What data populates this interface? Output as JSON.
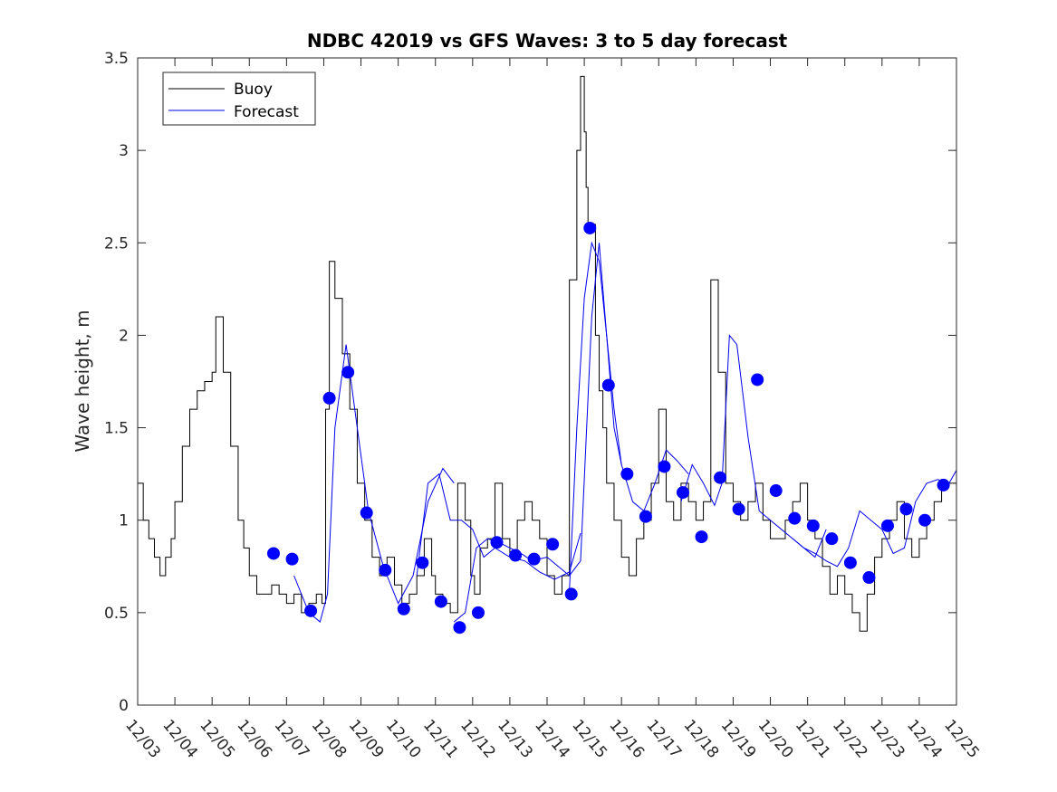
{
  "chart_data": {
    "type": "line",
    "title": "NDBC 42019 vs GFS Waves: 3 to 5 day forecast",
    "xlabel": "",
    "ylabel": "Wave height, m",
    "xlim": [
      0,
      22
    ],
    "ylim": [
      0,
      3.5
    ],
    "x_ticks": [
      0,
      1,
      2,
      3,
      4,
      5,
      6,
      7,
      8,
      9,
      10,
      11,
      12,
      13,
      14,
      15,
      16,
      17,
      18,
      19,
      20,
      21,
      22
    ],
    "x_tick_labels": [
      "12/03",
      "12/04",
      "12/05",
      "12/06",
      "12/07",
      "12/08",
      "12/09",
      "12/10",
      "12/11",
      "12/12",
      "12/13",
      "12/14",
      "12/15",
      "12/16",
      "12/17",
      "12/18",
      "12/19",
      "12/20",
      "12/21",
      "12/22",
      "12/23",
      "12/24",
      "12/25"
    ],
    "y_ticks": [
      0,
      0.5,
      1,
      1.5,
      2,
      2.5,
      3,
      3.5
    ],
    "y_tick_labels": [
      "0",
      "0.5",
      "1",
      "1.5",
      "2",
      "2.5",
      "3",
      "3.5"
    ],
    "legend": {
      "position": "top-left",
      "entries": [
        {
          "label": "Buoy",
          "color": "#000000"
        },
        {
          "label": "Forecast",
          "color": "#0000ee"
        }
      ]
    },
    "colors": {
      "buoy": "#000000",
      "forecast": "#0000ee",
      "marker": "#0000ff"
    },
    "series": [
      {
        "name": "Buoy",
        "x": [
          0,
          0.15,
          0.3,
          0.45,
          0.6,
          0.75,
          0.9,
          1.0,
          1.2,
          1.4,
          1.6,
          1.8,
          2.0,
          2.1,
          2.3,
          2.5,
          2.7,
          2.85,
          3.0,
          3.2,
          3.4,
          3.6,
          3.8,
          4.0,
          4.2,
          4.4,
          4.6,
          4.8,
          4.95,
          5.05,
          5.15,
          5.3,
          5.5,
          5.7,
          5.9,
          6.1,
          6.3,
          6.5,
          6.7,
          6.9,
          7.1,
          7.3,
          7.5,
          7.7,
          7.9,
          8.0,
          8.2,
          8.4,
          8.6,
          8.8,
          8.95,
          9.05,
          9.2,
          9.4,
          9.6,
          9.8,
          10.0,
          10.2,
          10.4,
          10.6,
          10.8,
          11.0,
          11.2,
          11.4,
          11.6,
          11.8,
          11.9,
          12.0,
          12.05,
          12.1,
          12.3,
          12.4,
          12.5,
          12.6,
          12.8,
          13.0,
          13.2,
          13.4,
          13.6,
          13.8,
          14.0,
          14.2,
          14.4,
          14.6,
          14.8,
          15.0,
          15.2,
          15.4,
          15.6,
          15.8,
          16.0,
          16.2,
          16.4,
          16.6,
          16.8,
          17.0,
          17.2,
          17.4,
          17.6,
          17.8,
          18.0,
          18.2,
          18.4,
          18.6,
          18.8,
          19.0,
          19.2,
          19.4,
          19.6,
          19.8,
          20.0,
          20.2,
          20.4,
          20.6,
          20.8,
          21.0,
          21.2,
          21.4,
          21.6,
          21.8,
          22.0
        ],
        "values": [
          1.2,
          1.0,
          0.9,
          0.8,
          0.7,
          0.8,
          0.9,
          1.1,
          1.4,
          1.6,
          1.7,
          1.75,
          1.8,
          2.1,
          1.8,
          1.4,
          1.0,
          0.85,
          0.7,
          0.6,
          0.6,
          0.65,
          0.6,
          0.55,
          0.6,
          0.5,
          0.55,
          0.6,
          0.55,
          1.6,
          2.4,
          2.2,
          1.9,
          1.6,
          1.2,
          1.0,
          0.8,
          0.7,
          0.8,
          0.65,
          0.55,
          0.6,
          0.7,
          0.9,
          0.7,
          0.6,
          0.55,
          0.5,
          1.2,
          1.0,
          0.7,
          0.6,
          0.85,
          0.9,
          1.2,
          0.9,
          0.8,
          1.0,
          1.1,
          1.0,
          0.9,
          0.7,
          0.6,
          0.7,
          2.3,
          3.0,
          3.4,
          3.1,
          2.8,
          2.6,
          2.0,
          1.7,
          1.5,
          1.2,
          1.0,
          0.8,
          0.7,
          0.9,
          1.0,
          1.2,
          1.6,
          1.1,
          1.0,
          1.2,
          1.1,
          1.0,
          1.1,
          2.3,
          1.8,
          1.2,
          1.1,
          1.0,
          1.1,
          1.2,
          1.0,
          0.9,
          0.9,
          1.0,
          1.1,
          1.2,
          1.0,
          0.9,
          0.75,
          0.6,
          0.7,
          0.6,
          0.5,
          0.4,
          0.6,
          0.8,
          0.9,
          1.0,
          1.1,
          0.9,
          0.8,
          0.9,
          1.0,
          1.1,
          1.2,
          1.2,
          1.25
        ]
      },
      {
        "name": "Forecast",
        "x": [
          4.2,
          4.6,
          4.9,
          5.1,
          5.3,
          5.6,
          5.9,
          6.2,
          6.6,
          7.0,
          7.4,
          7.8,
          8.2,
          8.5
        ],
        "values": [
          0.7,
          0.5,
          0.45,
          0.6,
          1.5,
          1.95,
          1.5,
          1.05,
          0.75,
          0.55,
          0.7,
          1.1,
          1.28,
          1.2
        ]
      },
      {
        "name": "Forecast",
        "x": [
          7.5,
          7.8,
          8.1,
          8.4,
          8.7,
          9.0,
          9.3,
          9.6,
          10.0,
          10.4,
          10.8,
          11.2,
          11.6,
          11.9
        ],
        "values": [
          0.7,
          1.2,
          1.25,
          1.0,
          1.0,
          0.95,
          0.8,
          0.85,
          0.8,
          0.78,
          0.72,
          0.68,
          0.72,
          0.93
        ]
      },
      {
        "name": "Forecast",
        "x": [
          8.5,
          8.8,
          9.1,
          9.4,
          9.7,
          10.0,
          10.3,
          10.6,
          11.0,
          11.3,
          11.6,
          11.9,
          12.2,
          12.4,
          12.6,
          12.8,
          13.0
        ],
        "values": [
          0.45,
          0.5,
          0.85,
          0.9,
          0.88,
          0.85,
          0.82,
          0.78,
          0.8,
          0.75,
          0.7,
          0.78,
          2.1,
          2.5,
          2.0,
          1.5,
          1.3
        ]
      },
      {
        "name": "Forecast",
        "x": [
          11.6,
          11.8,
          12.0,
          12.2,
          12.4,
          12.6,
          12.8,
          13.0,
          13.3,
          13.6,
          13.9,
          14.2,
          14.5,
          14.8
        ],
        "values": [
          0.62,
          1.5,
          2.2,
          2.5,
          2.4,
          2.0,
          1.6,
          1.3,
          1.1,
          1.05,
          1.2,
          1.38,
          1.32,
          1.25
        ]
      },
      {
        "name": "Forecast",
        "x": [
          14.6,
          14.9,
          15.2,
          15.5,
          15.7,
          15.9,
          16.1,
          16.4,
          16.7,
          17.0,
          17.3,
          17.6,
          17.9,
          18.2,
          18.5
        ],
        "values": [
          1.1,
          1.3,
          1.2,
          1.08,
          1.2,
          2.0,
          1.95,
          1.45,
          1.05,
          1.0,
          0.95,
          0.9,
          0.85,
          0.8,
          0.95
        ]
      },
      {
        "name": "Forecast",
        "x": [
          17.6,
          17.9,
          18.2,
          18.5,
          18.8,
          19.1,
          19.4,
          19.7,
          20.0,
          20.3,
          20.6,
          20.9,
          21.2,
          21.5,
          21.8,
          22.0
        ],
        "values": [
          0.9,
          0.85,
          0.82,
          0.78,
          0.75,
          0.85,
          1.05,
          1.0,
          0.95,
          0.82,
          0.85,
          1.1,
          1.2,
          1.22,
          1.2,
          1.27
        ]
      }
    ],
    "markers": {
      "name": "Forecast points",
      "x": [
        3.65,
        4.15,
        4.65,
        5.15,
        5.65,
        6.15,
        6.65,
        7.15,
        7.65,
        8.15,
        8.65,
        9.15,
        9.65,
        10.15,
        10.65,
        11.15,
        11.65,
        12.15,
        12.65,
        13.15,
        13.65,
        14.15,
        14.65,
        15.15,
        15.65,
        16.15,
        16.65,
        17.15,
        17.65,
        18.15,
        18.65,
        19.15,
        19.65,
        20.15,
        20.65,
        21.15,
        21.65
      ],
      "values": [
        0.82,
        0.79,
        0.51,
        1.66,
        1.8,
        1.04,
        0.73,
        0.52,
        0.77,
        0.56,
        0.42,
        0.5,
        0.88,
        0.81,
        0.79,
        0.87,
        0.6,
        2.58,
        1.73,
        1.25,
        1.02,
        1.29,
        1.15,
        0.91,
        1.23,
        1.06,
        1.76,
        1.16,
        1.01,
        0.97,
        0.9,
        0.77,
        0.69,
        0.97,
        1.06,
        1.0,
        1.19
      ]
    }
  }
}
